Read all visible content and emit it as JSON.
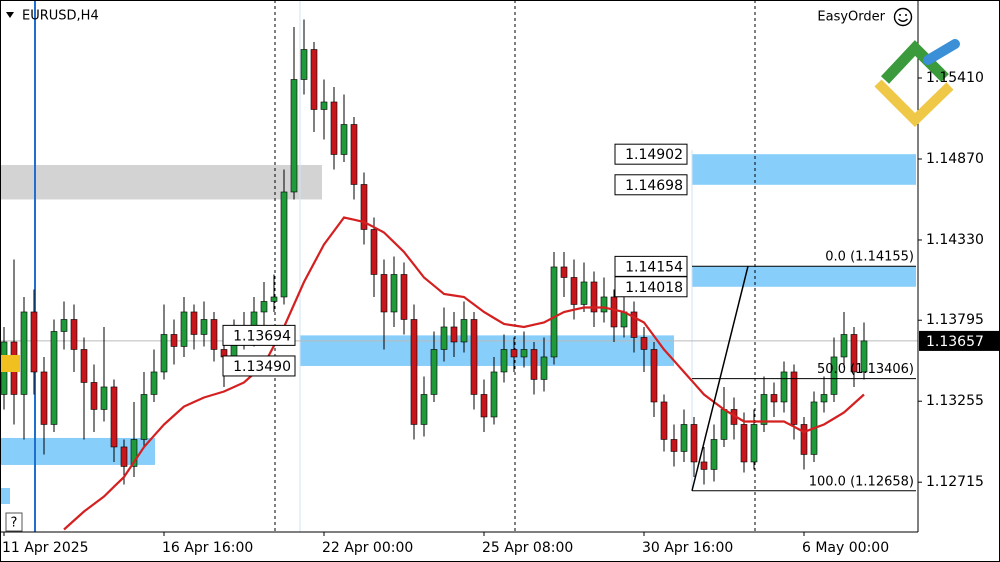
{
  "chart_data": {
    "type": "candlestick",
    "title": "EURUSD,H4",
    "panel_label": "EasyOrder",
    "help_label": "?",
    "up_color": "#1f9a3a",
    "down_color": "#c8161d",
    "ma_color": "#d42020",
    "open": [
      1.133,
      1.1365,
      1.133,
      1.1385,
      1.1345,
      1.131,
      1.1372,
      1.138,
      1.136,
      1.1338,
      1.132,
      1.1335,
      1.1295,
      1.1282,
      1.13,
      1.133,
      1.1345,
      1.137,
      1.1362,
      1.1385,
      1.137,
      1.138,
      1.136,
      1.1355,
      1.1372,
      1.1368,
      1.1385,
      1.1392,
      1.1395,
      1.1465,
      1.154,
      1.156,
      1.152,
      1.1525,
      1.149,
      1.151,
      1.147,
      1.144,
      1.141,
      1.1385,
      1.141,
      1.138,
      1.131,
      1.133,
      1.136,
      1.1375,
      1.1365,
      1.138,
      1.133,
      1.1315,
      1.1345,
      1.136,
      1.1355,
      1.136,
      1.134,
      1.1355,
      1.1415,
      1.1408,
      1.139,
      1.1405,
      1.1385,
      1.1395,
      1.1375,
      1.1385,
      1.1368,
      1.136,
      1.1325,
      1.13,
      1.1292,
      1.131,
      1.1285,
      1.128,
      1.13,
      1.132,
      1.131,
      1.1285,
      1.131,
      1.133,
      1.1325,
      1.1345,
      1.131,
      1.129,
      1.1325,
      1.133,
      1.1355,
      1.137,
      1.1345
    ],
    "high": [
      1.1375,
      1.142,
      1.1395,
      1.14,
      1.1355,
      1.138,
      1.1392,
      1.139,
      1.1368,
      1.135,
      1.1375,
      1.134,
      1.13,
      1.1325,
      1.1345,
      1.136,
      1.139,
      1.138,
      1.1395,
      1.139,
      1.1392,
      1.1385,
      1.1372,
      1.138,
      1.1385,
      1.1395,
      1.1405,
      1.141,
      1.148,
      1.1575,
      1.158,
      1.1565,
      1.154,
      1.1535,
      1.153,
      1.1515,
      1.1478,
      1.1448,
      1.142,
      1.1422,
      1.1418,
      1.139,
      1.1342,
      1.1372,
      1.1388,
      1.1385,
      1.1392,
      1.1385,
      1.134,
      1.1355,
      1.137,
      1.1368,
      1.1372,
      1.1365,
      1.1368,
      1.1425,
      1.1425,
      1.142,
      1.1418,
      1.1412,
      1.1408,
      1.14,
      1.1395,
      1.1392,
      1.1375,
      1.1365,
      1.133,
      1.131,
      1.132,
      1.1315,
      1.1295,
      1.131,
      1.1335,
      1.1328,
      1.1318,
      1.132,
      1.1342,
      1.1338,
      1.1352,
      1.135,
      1.1315,
      1.1332,
      1.1342,
      1.1368,
      1.1385,
      1.1375,
      1.1378
    ],
    "low": [
      1.132,
      1.131,
      1.13,
      1.133,
      1.129,
      1.1305,
      1.136,
      1.1345,
      1.13,
      1.1305,
      1.1312,
      1.1285,
      1.127,
      1.1275,
      1.1295,
      1.1325,
      1.134,
      1.135,
      1.1355,
      1.136,
      1.1362,
      1.1352,
      1.1335,
      1.135,
      1.136,
      1.1362,
      1.1375,
      1.1385,
      1.139,
      1.146,
      1.153,
      1.1505,
      1.15,
      1.148,
      1.1485,
      1.146,
      1.143,
      1.1395,
      1.136,
      1.1375,
      1.137,
      1.13,
      1.1302,
      1.1325,
      1.1352,
      1.1355,
      1.1358,
      1.132,
      1.1305,
      1.131,
      1.1338,
      1.1345,
      1.1348,
      1.133,
      1.1332,
      1.135,
      1.1395,
      1.138,
      1.1385,
      1.1375,
      1.1378,
      1.1365,
      1.1368,
      1.1358,
      1.1345,
      1.1315,
      1.1292,
      1.1282,
      1.1285,
      1.1275,
      1.127,
      1.1272,
      1.1295,
      1.13,
      1.1278,
      1.128,
      1.1305,
      1.1315,
      1.1318,
      1.13,
      1.128,
      1.1285,
      1.1318,
      1.1325,
      1.1348,
      1.1335,
      1.134
    ],
    "close": [
      1.1365,
      1.133,
      1.1385,
      1.1345,
      1.131,
      1.1372,
      1.138,
      1.136,
      1.1338,
      1.132,
      1.1335,
      1.1295,
      1.1282,
      1.13,
      1.133,
      1.1345,
      1.137,
      1.1362,
      1.1385,
      1.137,
      1.138,
      1.136,
      1.1355,
      1.1372,
      1.1368,
      1.1385,
      1.1392,
      1.1395,
      1.1465,
      1.154,
      1.156,
      1.152,
      1.1525,
      1.149,
      1.151,
      1.147,
      1.144,
      1.141,
      1.1385,
      1.141,
      1.138,
      1.131,
      1.133,
      1.136,
      1.1375,
      1.1365,
      1.138,
      1.133,
      1.1315,
      1.1345,
      1.136,
      1.1355,
      1.136,
      1.134,
      1.1355,
      1.1415,
      1.1408,
      1.139,
      1.1405,
      1.1385,
      1.1395,
      1.1375,
      1.1385,
      1.1368,
      1.136,
      1.1325,
      1.13,
      1.1292,
      1.131,
      1.1285,
      1.128,
      1.13,
      1.132,
      1.131,
      1.1285,
      1.131,
      1.133,
      1.1325,
      1.1345,
      1.131,
      1.129,
      1.1325,
      1.133,
      1.1355,
      1.137,
      1.1345,
      1.13657
    ],
    "ma_values": [
      null,
      null,
      null,
      null,
      null,
      null,
      1.124,
      1.1246,
      1.1252,
      1.1257,
      1.1262,
      1.12685,
      1.1275,
      1.1285,
      1.1295,
      1.13025,
      1.131,
      1.1316,
      1.1322,
      1.1325,
      1.1328,
      1.133,
      1.1332,
      1.1335,
      1.1338,
      1.1344,
      1.135,
      1.13625,
      1.1375,
      1.139,
      1.1405,
      1.14175,
      1.143,
      1.1439,
      1.1448,
      1.14465,
      1.1445,
      1.14415,
      1.1438,
      1.14315,
      1.1425,
      1.14165,
      1.1408,
      1.14025,
      1.1397,
      1.1396,
      1.1395,
      1.139,
      1.1385,
      1.1381,
      1.1377,
      1.1376,
      1.1375,
      1.13765,
      1.1378,
      1.13815,
      1.1385,
      1.13865,
      1.1388,
      1.1388,
      1.1388,
      1.13865,
      1.1385,
      1.13815,
      1.1378,
      1.1369,
      1.136,
      1.13525,
      1.1345,
      1.13375,
      1.133,
      1.1325,
      1.132,
      1.1316,
      1.1312,
      1.1312,
      1.1312,
      1.1312,
      1.1312,
      1.13085,
      1.1305,
      1.13075,
      1.131,
      1.1314,
      1.1318,
      1.1324,
      1.133
    ],
    "xlim": [
      -0.4,
      91.4
    ],
    "xticks": [
      {
        "value": 0,
        "label": "11 Apr 2025"
      },
      {
        "value": 16,
        "label": "16 Apr 16:00"
      },
      {
        "value": 32,
        "label": "22 Apr 00:00"
      },
      {
        "value": 48,
        "label": "25 Apr 08:00"
      },
      {
        "value": 64,
        "label": "30 Apr 16:00"
      },
      {
        "value": 80,
        "label": "6 May 00:00"
      }
    ],
    "ylim": [
      1.12383,
      1.1593
    ],
    "yticks": [
      {
        "value": 1.1541,
        "label": "1.15410"
      },
      {
        "value": 1.1487,
        "label": "1.14870"
      },
      {
        "value": 1.1433,
        "label": "1.14330"
      },
      1.13795,
      1.13255,
      1.12715
    ],
    "current_price": 1.13657,
    "zones": [
      {
        "top": 1.1483,
        "bottom": 1.146,
        "color": "#d3d3d3"
      },
      {
        "top": 1.1301,
        "bottom": 1.1283,
        "color": "#87cefa"
      },
      {
        "top": 1.13694,
        "bottom": 1.1349,
        "color": "#87cefa",
        "labels": [
          "1.13694",
          "1.13490"
        ]
      },
      {
        "top": 1.14902,
        "bottom": 1.14698,
        "color": "#87cefa",
        "labels": [
          "1.14902",
          "1.14698"
        ]
      },
      {
        "top": 1.14154,
        "bottom": 1.14018,
        "color": "#87cefa",
        "labels": [
          "1.14154",
          "1.14018"
        ]
      }
    ],
    "fib_levels": [
      {
        "value": 1.14155,
        "label": "0.0 (1.14155)"
      },
      {
        "value": 1.13406,
        "label": "50.0 (1.13406)"
      },
      {
        "value": 1.12658,
        "label": "100.0 (1.12658)"
      }
    ]
  }
}
